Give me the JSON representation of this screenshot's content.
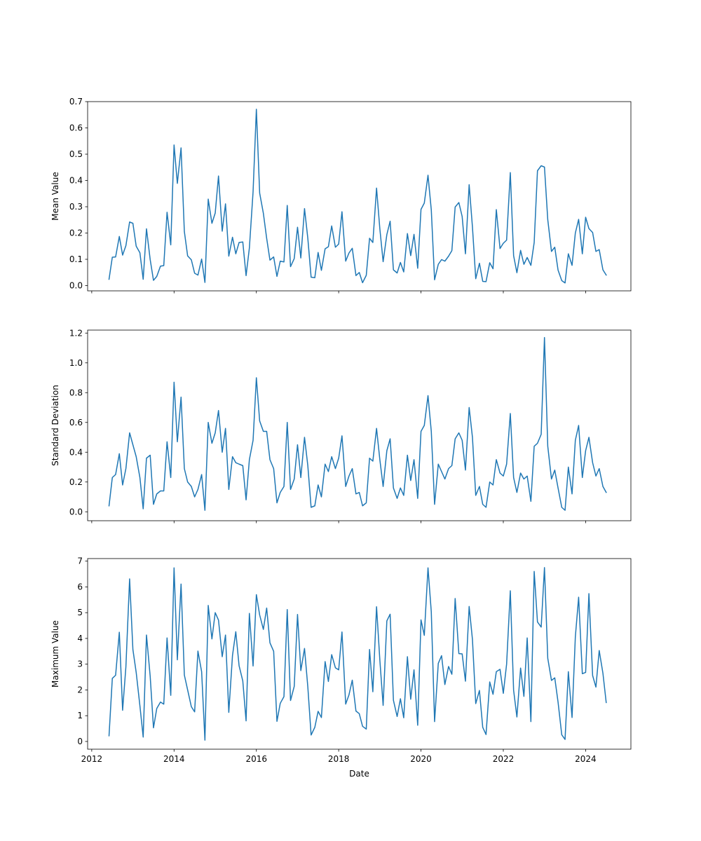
{
  "chart_data": [
    {
      "type": "line",
      "ylabel": "Mean Value",
      "xlabel": "",
      "ylim": [
        -0.02,
        0.7
      ],
      "yticks": [
        0.0,
        0.1,
        0.2,
        0.3,
        0.4,
        0.5,
        0.6,
        0.7
      ],
      "ytick_labels": [
        "0.0",
        "0.1",
        "0.2",
        "0.3",
        "0.4",
        "0.5",
        "0.6",
        "0.7"
      ],
      "xticks": [
        2012,
        2014,
        2016,
        2018,
        2020,
        2022,
        2024
      ],
      "xtick_labels": [],
      "grid": false,
      "legend": "none",
      "color": "#1f77b4",
      "x": [
        2012.42,
        2012.5,
        2012.58,
        2012.67,
        2012.75,
        2012.83,
        2012.92,
        2013.0,
        2013.08,
        2013.17,
        2013.25,
        2013.33,
        2013.42,
        2013.5,
        2013.58,
        2013.67,
        2013.75,
        2013.83,
        2013.92,
        2014.0,
        2014.08,
        2014.17,
        2014.25,
        2014.33,
        2014.42,
        2014.5,
        2014.58,
        2014.67,
        2014.75,
        2014.83,
        2014.92,
        2015.0,
        2015.08,
        2015.17,
        2015.25,
        2015.33,
        2015.42,
        2015.5,
        2015.58,
        2015.67,
        2015.75,
        2015.83,
        2015.92,
        2016.0,
        2016.08,
        2016.17,
        2016.25,
        2016.33,
        2016.42,
        2016.5,
        2016.58,
        2016.67,
        2016.75,
        2016.83,
        2016.92,
        2017.0,
        2017.08,
        2017.17,
        2017.25,
        2017.33,
        2017.42,
        2017.5,
        2017.58,
        2017.67,
        2017.75,
        2017.83,
        2017.92,
        2018.0,
        2018.08,
        2018.17,
        2018.25,
        2018.33,
        2018.42,
        2018.5,
        2018.58,
        2018.67,
        2018.75,
        2018.83,
        2018.92,
        2019.0,
        2019.08,
        2019.17,
        2019.25,
        2019.33,
        2019.42,
        2019.5,
        2019.58,
        2019.67,
        2019.75,
        2019.83,
        2019.92,
        2020.0,
        2020.08,
        2020.17,
        2020.25,
        2020.33,
        2020.42,
        2020.5,
        2020.58,
        2020.67,
        2020.75,
        2020.83,
        2020.92,
        2021.0,
        2021.08,
        2021.17,
        2021.25,
        2021.33,
        2021.42,
        2021.5,
        2021.58,
        2021.67,
        2021.75,
        2021.83,
        2021.92,
        2022.0,
        2022.08,
        2022.17,
        2022.25,
        2022.33,
        2022.42,
        2022.5,
        2022.58,
        2022.67,
        2022.75,
        2022.83,
        2022.92,
        2023.0,
        2023.08,
        2023.17,
        2023.25,
        2023.33,
        2023.42,
        2023.5,
        2023.58,
        2023.67,
        2023.75,
        2023.83,
        2023.92,
        2024.0,
        2024.08,
        2024.17,
        2024.25,
        2024.33,
        2024.42,
        2024.5
      ],
      "y": [
        0.024,
        0.108,
        0.109,
        0.187,
        0.116,
        0.152,
        0.242,
        0.237,
        0.15,
        0.125,
        0.024,
        0.216,
        0.099,
        0.02,
        0.035,
        0.074,
        0.076,
        0.279,
        0.155,
        0.535,
        0.389,
        0.524,
        0.206,
        0.113,
        0.098,
        0.047,
        0.04,
        0.101,
        0.012,
        0.329,
        0.237,
        0.276,
        0.417,
        0.207,
        0.311,
        0.112,
        0.184,
        0.121,
        0.164,
        0.166,
        0.038,
        0.143,
        0.357,
        0.671,
        0.352,
        0.275,
        0.18,
        0.097,
        0.109,
        0.035,
        0.093,
        0.09,
        0.305,
        0.072,
        0.103,
        0.222,
        0.105,
        0.293,
        0.18,
        0.032,
        0.03,
        0.126,
        0.058,
        0.14,
        0.148,
        0.227,
        0.146,
        0.158,
        0.281,
        0.093,
        0.124,
        0.142,
        0.038,
        0.05,
        0.011,
        0.039,
        0.18,
        0.164,
        0.371,
        0.216,
        0.091,
        0.194,
        0.245,
        0.06,
        0.048,
        0.088,
        0.052,
        0.198,
        0.114,
        0.195,
        0.066,
        0.29,
        0.314,
        0.42,
        0.288,
        0.022,
        0.081,
        0.099,
        0.093,
        0.112,
        0.133,
        0.299,
        0.316,
        0.263,
        0.121,
        0.384,
        0.223,
        0.026,
        0.085,
        0.016,
        0.015,
        0.087,
        0.064,
        0.289,
        0.141,
        0.161,
        0.173,
        0.43,
        0.114,
        0.049,
        0.134,
        0.081,
        0.107,
        0.077,
        0.164,
        0.437,
        0.456,
        0.451,
        0.251,
        0.13,
        0.146,
        0.059,
        0.019,
        0.01,
        0.121,
        0.077,
        0.2,
        0.252,
        0.121,
        0.26,
        0.217,
        0.202,
        0.13,
        0.137,
        0.06,
        0.04
      ]
    },
    {
      "type": "line",
      "ylabel": "Standard Deviation",
      "xlabel": "",
      "ylim": [
        -0.06,
        1.22
      ],
      "yticks": [
        0.0,
        0.2,
        0.4,
        0.6,
        0.8,
        1.0,
        1.2
      ],
      "ytick_labels": [
        "0.0",
        "0.2",
        "0.4",
        "0.6",
        "0.8",
        "1.0",
        "1.2"
      ],
      "xticks": [
        2012,
        2014,
        2016,
        2018,
        2020,
        2022,
        2024
      ],
      "xtick_labels": [],
      "grid": false,
      "legend": "none",
      "color": "#1f77b4",
      "x": [
        2012.42,
        2012.5,
        2012.58,
        2012.67,
        2012.75,
        2012.83,
        2012.92,
        2013.0,
        2013.08,
        2013.17,
        2013.25,
        2013.33,
        2013.42,
        2013.5,
        2013.58,
        2013.67,
        2013.75,
        2013.83,
        2013.92,
        2014.0,
        2014.08,
        2014.17,
        2014.25,
        2014.33,
        2014.42,
        2014.5,
        2014.58,
        2014.67,
        2014.75,
        2014.83,
        2014.92,
        2015.0,
        2015.08,
        2015.17,
        2015.25,
        2015.33,
        2015.42,
        2015.5,
        2015.58,
        2015.67,
        2015.75,
        2015.83,
        2015.92,
        2016.0,
        2016.08,
        2016.17,
        2016.25,
        2016.33,
        2016.42,
        2016.5,
        2016.58,
        2016.67,
        2016.75,
        2016.83,
        2016.92,
        2017.0,
        2017.08,
        2017.17,
        2017.25,
        2017.33,
        2017.42,
        2017.5,
        2017.58,
        2017.67,
        2017.75,
        2017.83,
        2017.92,
        2018.0,
        2018.08,
        2018.17,
        2018.25,
        2018.33,
        2018.42,
        2018.5,
        2018.58,
        2018.67,
        2018.75,
        2018.83,
        2018.92,
        2019.0,
        2019.08,
        2019.17,
        2019.25,
        2019.33,
        2019.42,
        2019.5,
        2019.58,
        2019.67,
        2019.75,
        2019.83,
        2019.92,
        2020.0,
        2020.08,
        2020.17,
        2020.25,
        2020.33,
        2020.42,
        2020.5,
        2020.58,
        2020.67,
        2020.75,
        2020.83,
        2020.92,
        2021.0,
        2021.08,
        2021.17,
        2021.25,
        2021.33,
        2021.42,
        2021.5,
        2021.58,
        2021.67,
        2021.75,
        2021.83,
        2021.92,
        2022.0,
        2022.08,
        2022.17,
        2022.25,
        2022.33,
        2022.42,
        2022.5,
        2022.58,
        2022.67,
        2022.75,
        2022.83,
        2022.92,
        2023.0,
        2023.08,
        2023.17,
        2023.25,
        2023.33,
        2023.42,
        2023.5,
        2023.58,
        2023.67,
        2023.75,
        2023.83,
        2023.92,
        2024.0,
        2024.08,
        2024.17,
        2024.25,
        2024.33,
        2024.42,
        2024.5
      ],
      "y": [
        0.04,
        0.23,
        0.25,
        0.39,
        0.18,
        0.29,
        0.53,
        0.45,
        0.37,
        0.23,
        0.02,
        0.36,
        0.38,
        0.05,
        0.12,
        0.14,
        0.14,
        0.47,
        0.23,
        0.87,
        0.47,
        0.77,
        0.29,
        0.2,
        0.17,
        0.1,
        0.15,
        0.25,
        0.01,
        0.6,
        0.46,
        0.53,
        0.68,
        0.4,
        0.56,
        0.15,
        0.37,
        0.33,
        0.32,
        0.31,
        0.08,
        0.35,
        0.48,
        0.9,
        0.61,
        0.54,
        0.54,
        0.35,
        0.29,
        0.06,
        0.13,
        0.17,
        0.6,
        0.15,
        0.22,
        0.45,
        0.23,
        0.5,
        0.31,
        0.03,
        0.04,
        0.18,
        0.1,
        0.32,
        0.27,
        0.37,
        0.29,
        0.36,
        0.51,
        0.17,
        0.24,
        0.29,
        0.12,
        0.13,
        0.04,
        0.06,
        0.36,
        0.34,
        0.56,
        0.35,
        0.17,
        0.41,
        0.49,
        0.16,
        0.09,
        0.16,
        0.11,
        0.38,
        0.21,
        0.35,
        0.09,
        0.54,
        0.58,
        0.78,
        0.54,
        0.05,
        0.32,
        0.27,
        0.22,
        0.29,
        0.31,
        0.49,
        0.53,
        0.48,
        0.28,
        0.7,
        0.5,
        0.11,
        0.17,
        0.05,
        0.03,
        0.2,
        0.18,
        0.35,
        0.26,
        0.24,
        0.32,
        0.66,
        0.23,
        0.13,
        0.26,
        0.22,
        0.24,
        0.07,
        0.44,
        0.46,
        0.52,
        1.17,
        0.44,
        0.22,
        0.28,
        0.16,
        0.03,
        0.01,
        0.3,
        0.12,
        0.48,
        0.58,
        0.23,
        0.41,
        0.5,
        0.33,
        0.24,
        0.29,
        0.17,
        0.13
      ]
    },
    {
      "type": "line",
      "ylabel": "Maximum Value",
      "xlabel": "Date",
      "ylim": [
        -0.3,
        7.1
      ],
      "yticks": [
        0,
        1,
        2,
        3,
        4,
        5,
        6,
        7
      ],
      "ytick_labels": [
        "0",
        "1",
        "2",
        "3",
        "4",
        "5",
        "6",
        "7"
      ],
      "xticks": [
        2012,
        2014,
        2016,
        2018,
        2020,
        2022,
        2024
      ],
      "xtick_labels": [
        "2012",
        "2014",
        "2016",
        "2018",
        "2020",
        "2022",
        "2024"
      ],
      "grid": false,
      "legend": "none",
      "color": "#1f77b4",
      "x": [
        2012.42,
        2012.5,
        2012.58,
        2012.67,
        2012.75,
        2012.83,
        2012.92,
        2013.0,
        2013.08,
        2013.17,
        2013.25,
        2013.33,
        2013.42,
        2013.5,
        2013.58,
        2013.67,
        2013.75,
        2013.83,
        2013.92,
        2014.0,
        2014.08,
        2014.17,
        2014.25,
        2014.33,
        2014.42,
        2014.5,
        2014.58,
        2014.67,
        2014.75,
        2014.83,
        2014.92,
        2015.0,
        2015.08,
        2015.17,
        2015.25,
        2015.33,
        2015.42,
        2015.5,
        2015.58,
        2015.67,
        2015.75,
        2015.83,
        2015.92,
        2016.0,
        2016.08,
        2016.17,
        2016.25,
        2016.33,
        2016.42,
        2016.5,
        2016.58,
        2016.67,
        2016.75,
        2016.83,
        2016.92,
        2017.0,
        2017.08,
        2017.17,
        2017.25,
        2017.33,
        2017.42,
        2017.5,
        2017.58,
        2017.67,
        2017.75,
        2017.83,
        2017.92,
        2018.0,
        2018.08,
        2018.17,
        2018.25,
        2018.33,
        2018.42,
        2018.5,
        2018.58,
        2018.67,
        2018.75,
        2018.83,
        2018.92,
        2019.0,
        2019.08,
        2019.17,
        2019.25,
        2019.33,
        2019.42,
        2019.5,
        2019.58,
        2019.67,
        2019.75,
        2019.83,
        2019.92,
        2020.0,
        2020.08,
        2020.17,
        2020.25,
        2020.33,
        2020.42,
        2020.5,
        2020.58,
        2020.67,
        2020.75,
        2020.83,
        2020.92,
        2021.0,
        2021.08,
        2021.17,
        2021.25,
        2021.33,
        2021.42,
        2021.5,
        2021.58,
        2021.67,
        2021.75,
        2021.83,
        2021.92,
        2022.0,
        2022.08,
        2022.17,
        2022.25,
        2022.33,
        2022.42,
        2022.5,
        2022.58,
        2022.67,
        2022.75,
        2022.83,
        2022.92,
        2023.0,
        2023.08,
        2023.17,
        2023.25,
        2023.33,
        2023.42,
        2023.5,
        2023.58,
        2023.67,
        2023.75,
        2023.83,
        2023.92,
        2024.0,
        2024.08,
        2024.17,
        2024.25,
        2024.33,
        2024.42,
        2024.5
      ],
      "y": [
        0.22,
        2.45,
        2.57,
        4.24,
        1.21,
        2.9,
        6.31,
        3.57,
        2.68,
        1.39,
        0.17,
        4.13,
        2.53,
        0.53,
        1.28,
        1.53,
        1.45,
        4.02,
        1.79,
        6.74,
        3.17,
        6.11,
        2.58,
        2.0,
        1.35,
        1.15,
        3.51,
        2.71,
        0.05,
        5.28,
        3.98,
        5.0,
        4.71,
        3.29,
        4.13,
        1.13,
        3.34,
        4.26,
        2.94,
        2.35,
        0.8,
        4.97,
        2.93,
        5.7,
        4.91,
        4.35,
        5.18,
        3.83,
        3.5,
        0.78,
        1.48,
        1.74,
        5.12,
        1.59,
        2.14,
        4.93,
        2.75,
        3.61,
        2.12,
        0.25,
        0.55,
        1.17,
        0.93,
        3.1,
        2.33,
        3.37,
        2.86,
        2.78,
        4.25,
        1.45,
        1.81,
        2.38,
        1.18,
        1.08,
        0.59,
        0.48,
        3.57,
        1.93,
        5.23,
        3.16,
        1.4,
        4.68,
        4.94,
        1.6,
        0.97,
        1.66,
        0.92,
        3.29,
        1.64,
        2.78,
        0.63,
        4.72,
        4.12,
        6.74,
        5.03,
        0.77,
        3.03,
        3.33,
        2.21,
        2.91,
        2.61,
        5.55,
        3.41,
        3.4,
        2.34,
        5.24,
        3.96,
        1.47,
        1.98,
        0.55,
        0.27,
        2.31,
        1.83,
        2.71,
        2.8,
        1.87,
        3.0,
        5.85,
        1.99,
        0.95,
        2.85,
        1.75,
        4.02,
        0.77,
        6.6,
        4.64,
        4.44,
        6.75,
        3.23,
        2.37,
        2.47,
        1.53,
        0.26,
        0.08,
        2.71,
        0.93,
        4.06,
        5.6,
        2.63,
        2.68,
        5.74,
        2.56,
        2.11,
        3.53,
        2.65,
        1.51
      ]
    }
  ]
}
